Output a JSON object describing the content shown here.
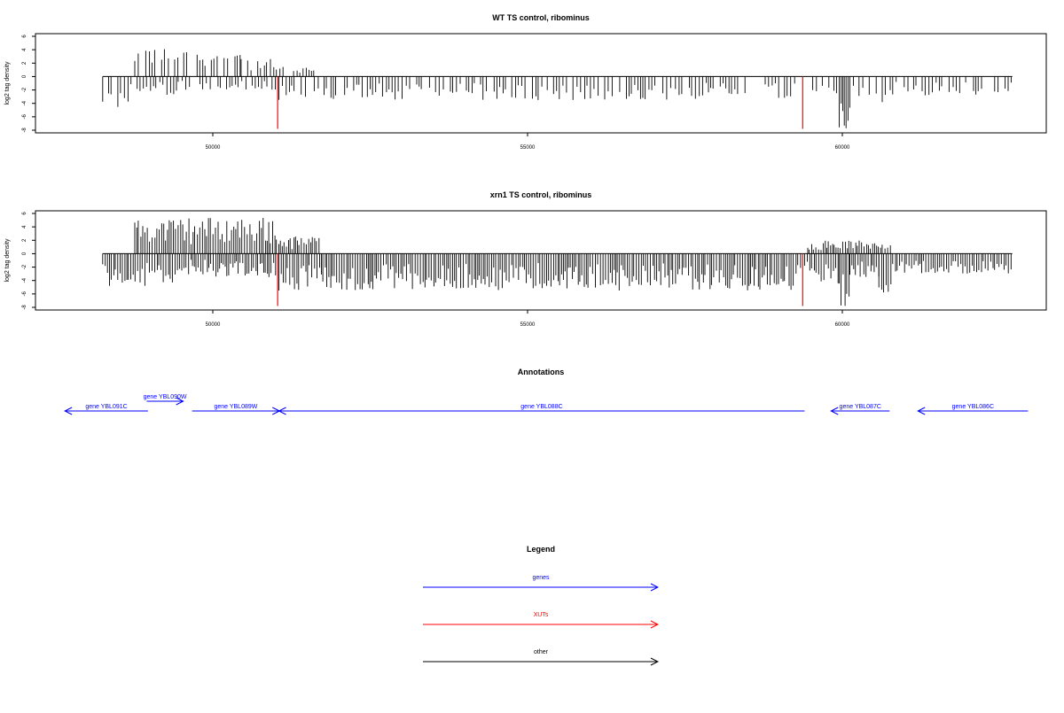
{
  "chart_data": [
    {
      "type": "bar",
      "title": "WT TS control, ribominus",
      "ylabel": "log2 tag density",
      "xlabel": "",
      "xlim": [
        47700,
        63300
      ],
      "ylim": [
        -8,
        6
      ],
      "xticks": [
        50000,
        55000,
        60000
      ],
      "yticks": [
        -8,
        -6,
        -4,
        -2,
        0,
        2,
        4,
        6
      ],
      "baseline": {
        "x_start": 48250,
        "x_end": 62700,
        "y": 0
      },
      "xut_markers": [
        {
          "x": 51030,
          "y": -7.8,
          "color": "#ff0000"
        },
        {
          "x": 59370,
          "y": -7.8,
          "color": "#ff0000"
        }
      ],
      "pos_segments": [
        {
          "x_start": 48760,
          "x_end": 49450,
          "max": 4.3
        },
        {
          "x_start": 49490,
          "x_end": 50450,
          "max": 4.0
        },
        {
          "x_start": 50450,
          "x_end": 50980,
          "max": 2.6
        },
        {
          "x_start": 51010,
          "x_end": 51700,
          "max": 1.5
        }
      ],
      "neg_segments": [
        {
          "x_start": 48250,
          "x_end": 48700,
          "min": -4.6
        },
        {
          "x_start": 48700,
          "x_end": 49450,
          "min": -2.8
        },
        {
          "x_start": 49450,
          "x_end": 51000,
          "min": -2.2
        },
        {
          "x_start": 51050,
          "x_end": 59350,
          "min": -3.5
        },
        {
          "x_start": 59400,
          "x_end": 59950,
          "min": -3.2
        },
        {
          "x_start": 59950,
          "x_end": 60120,
          "min": -7.8
        },
        {
          "x_start": 60120,
          "x_end": 60580,
          "min": -3.0
        },
        {
          "x_start": 60580,
          "x_end": 60800,
          "min": -5.2
        },
        {
          "x_start": 60800,
          "x_end": 62700,
          "min": -2.8
        }
      ]
    },
    {
      "type": "bar",
      "title": "xrn1 TS control, ribominus",
      "ylabel": "log2 tag density",
      "xlabel": "",
      "xlim": [
        47700,
        63300
      ],
      "ylim": [
        -8,
        6
      ],
      "xticks": [
        50000,
        55000,
        60000
      ],
      "yticks": [
        -8,
        -6,
        -4,
        -2,
        0,
        2,
        4,
        6
      ],
      "baseline": {
        "x_start": 48250,
        "x_end": 62700,
        "y": 0
      },
      "xut_markers": [
        {
          "x": 51030,
          "y": -7.8,
          "color": "#ff0000"
        },
        {
          "x": 59370,
          "y": -7.8,
          "color": "#ff0000"
        }
      ],
      "pos_segments": [
        {
          "x_start": 48760,
          "x_end": 49450,
          "max": 5.2
        },
        {
          "x_start": 49490,
          "x_end": 51000,
          "max": 5.5
        },
        {
          "x_start": 51010,
          "x_end": 51700,
          "max": 2.6
        },
        {
          "x_start": 59450,
          "x_end": 60800,
          "max": 2.0
        }
      ],
      "neg_segments": [
        {
          "x_start": 48250,
          "x_end": 49400,
          "min": -4.8
        },
        {
          "x_start": 49400,
          "x_end": 51000,
          "min": -3.5
        },
        {
          "x_start": 51050,
          "x_end": 59350,
          "min": -5.5
        },
        {
          "x_start": 59400,
          "x_end": 59950,
          "min": -4.5
        },
        {
          "x_start": 59950,
          "x_end": 60120,
          "min": -7.8
        },
        {
          "x_start": 60120,
          "x_end": 60580,
          "min": -3.5
        },
        {
          "x_start": 60580,
          "x_end": 60800,
          "min": -6.2
        },
        {
          "x_start": 60800,
          "x_end": 62700,
          "min": -3.0
        }
      ]
    }
  ],
  "annotations": {
    "title": "Annotations",
    "color": "#0000ff",
    "genes": [
      {
        "label": "gene YBL091C",
        "start": 48970,
        "end": 47650,
        "row": 1
      },
      {
        "label": "gene YBL090W",
        "start": 48950,
        "end": 49530,
        "row": 0
      },
      {
        "label": "gene YBL089W",
        "start": 49670,
        "end": 51060,
        "row": 1
      },
      {
        "label": "gene YBL088C",
        "start": 59400,
        "end": 51050,
        "row": 1
      },
      {
        "label": "gene YBL087C",
        "start": 60750,
        "end": 59820,
        "row": 1
      },
      {
        "label": "gene YBL086C",
        "start": 62950,
        "end": 61200,
        "row": 1
      }
    ]
  },
  "legend": {
    "title": "Legend",
    "items": [
      {
        "label": "genes",
        "color": "#0000ff"
      },
      {
        "label": "XUTs",
        "color": "#ff0000"
      },
      {
        "label": "other",
        "color": "#000000"
      }
    ]
  }
}
